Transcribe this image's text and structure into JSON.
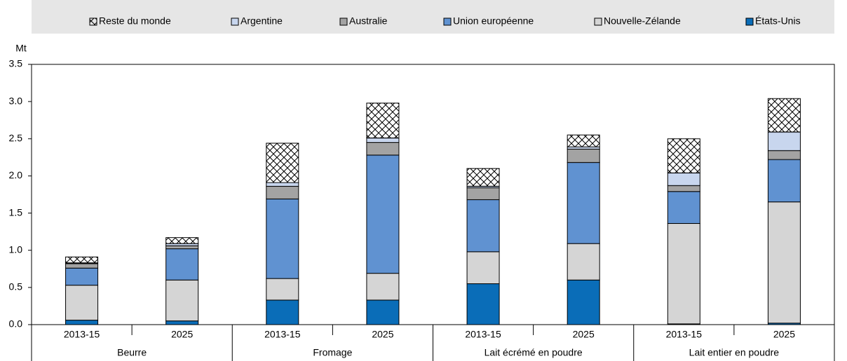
{
  "chart_data": {
    "type": "stacked_bar",
    "y_unit": "Mt",
    "categories": [
      "2013-15",
      "2025",
      "2013-15",
      "2025",
      "2013-15",
      "2025",
      "2013-15",
      "2025"
    ],
    "groups": [
      "Beurre",
      "Fromage",
      "Lait écrémé en poudre",
      "Lait entier en poudre"
    ],
    "ylim": [
      0,
      3.5
    ],
    "yticks": [
      {
        "value": 0,
        "label": "0.0"
      },
      0.5,
      {
        "value": 1,
        "label": "1.0"
      },
      1.5,
      {
        "value": 2,
        "label": "2.0"
      },
      2.5,
      {
        "value": 3,
        "label": "3.0"
      },
      3.5
    ],
    "series": [
      {
        "name": "Reste du monde",
        "color": "#ffffff",
        "pattern": "crosshatch",
        "values": [
          0.08,
          0.08,
          0.53,
          0.47,
          0.24,
          0.16,
          0.46,
          0.45
        ]
      },
      {
        "name": "Argentine",
        "color": "#c8d6ee",
        "values": [
          0.01,
          0.03,
          0.05,
          0.06,
          0.02,
          0.03,
          0.17,
          0.25
        ]
      },
      {
        "name": "Australie",
        "color": "#a3a3a3",
        "values": [
          0.06,
          0.04,
          0.17,
          0.17,
          0.16,
          0.18,
          0.08,
          0.12
        ]
      },
      {
        "name": "Union européenne",
        "color": "#6092d1",
        "values": [
          0.23,
          0.42,
          1.07,
          1.59,
          0.7,
          1.09,
          0.43,
          0.57
        ]
      },
      {
        "name": "Nouvelle-Zélande",
        "color": "#d5d5d5",
        "values": [
          0.47,
          0.55,
          0.29,
          0.36,
          0.43,
          0.49,
          1.35,
          1.63
        ]
      },
      {
        "name": "États-Unis",
        "color": "#0a6db8",
        "values": [
          0.06,
          0.05,
          0.33,
          0.33,
          0.55,
          0.6,
          0.01,
          0.02
        ]
      }
    ]
  }
}
